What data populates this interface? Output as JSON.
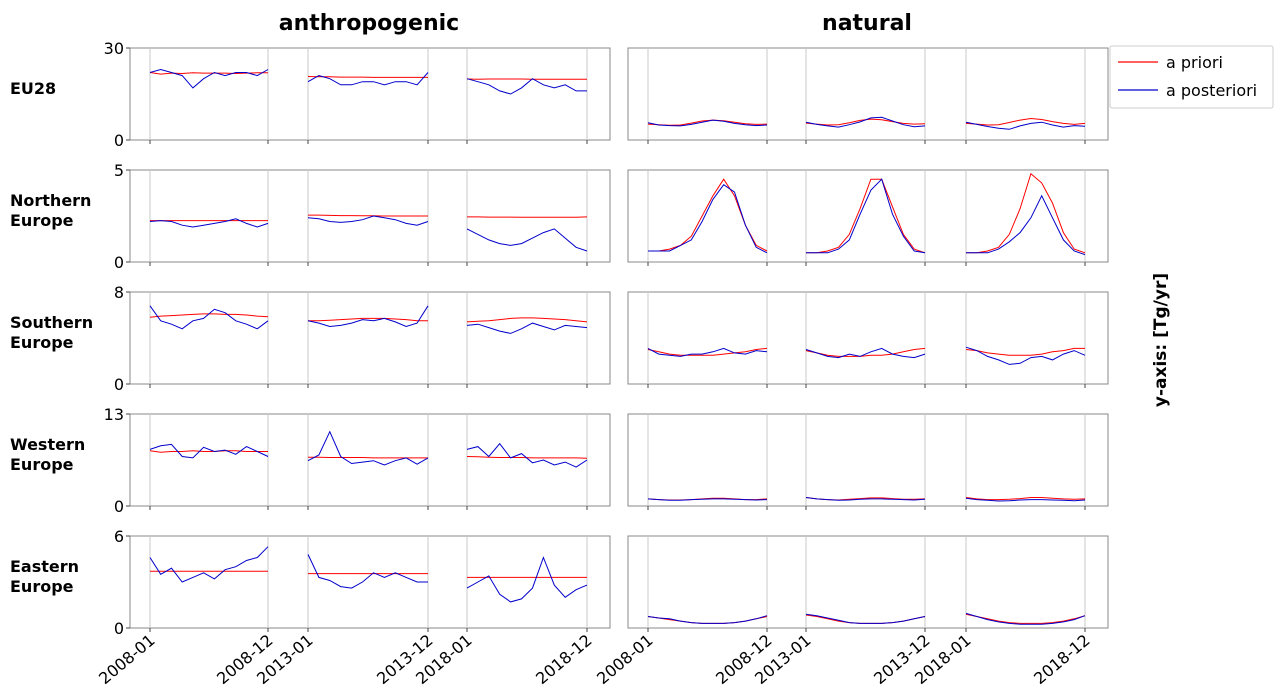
{
  "figure": {
    "col_titles": [
      "anthropogenic",
      "natural"
    ],
    "row_labels": [
      [
        "EU28"
      ],
      [
        "Northern",
        "Europe"
      ],
      [
        "Southern",
        "Europe"
      ],
      [
        "Western",
        "Europe"
      ],
      [
        "Eastern",
        "Europe"
      ]
    ],
    "y_axis_label": "y-axis: [Tg/yr]",
    "legend": {
      "prior_label": "a priori",
      "posterior_label": "a posteriori",
      "placement": "top-right, outside axes"
    },
    "colors": {
      "prior": "#ff0000",
      "posterior": "#0000cc",
      "vline": "#c8c8c8",
      "frame": "#888888"
    }
  },
  "chart_data": {
    "type": "line",
    "grid": false,
    "x_segments": [
      {
        "start": "2008-01",
        "end": "2008-12",
        "months": 12
      },
      {
        "start": "2013-01",
        "end": "2013-12",
        "months": 12
      },
      {
        "start": "2018-01",
        "end": "2018-12",
        "months": 12
      }
    ],
    "x_tick_labels": [
      "2008-01",
      "2008-12",
      "2013-01",
      "2013-12",
      "2018-01",
      "2018-12"
    ],
    "rows": [
      {
        "region": "EU28",
        "ylim": [
          0,
          30
        ],
        "y_ticks": [
          "0",
          "30"
        ],
        "anthropogenic": {
          "prior": [
            [
              22,
              21.5,
              21.8,
              21.7,
              21.9,
              21.8,
              21.8,
              21.8,
              21.7,
              21.8,
              21.9,
              21.9
            ],
            [
              20.7,
              20.6,
              20.6,
              20.5,
              20.5,
              20.5,
              20.4,
              20.4,
              20.4,
              20.4,
              20.4,
              20.4
            ],
            [
              19.9,
              19.8,
              19.9,
              19.9,
              19.9,
              19.9,
              19.8,
              19.8,
              19.8,
              19.8,
              19.8,
              19.8
            ]
          ],
          "posterior": [
            [
              22,
              23,
              22,
              21,
              17,
              20,
              22,
              21,
              22,
              22,
              21,
              23
            ],
            [
              19,
              21,
              20,
              18,
              18,
              19,
              19,
              18,
              19,
              19,
              18,
              22
            ],
            [
              20,
              19,
              18,
              16,
              15,
              17,
              20,
              18,
              17,
              18,
              16,
              16
            ]
          ]
        },
        "natural": {
          "prior": [
            [
              5.2,
              5.0,
              4.8,
              4.9,
              5.5,
              6.2,
              6.5,
              6.3,
              5.8,
              5.3,
              5.1,
              5.2
            ],
            [
              5.5,
              5.2,
              4.9,
              5.0,
              5.6,
              6.4,
              6.8,
              6.6,
              6.0,
              5.4,
              5.2,
              5.3
            ],
            [
              5.4,
              5.2,
              4.9,
              5.0,
              5.7,
              6.5,
              7.0,
              6.7,
              6.0,
              5.4,
              5.1,
              5.4
            ]
          ],
          "posterior": [
            [
              5.6,
              4.9,
              4.7,
              4.6,
              5.1,
              5.8,
              6.5,
              6.1,
              5.4,
              5.0,
              4.7,
              4.9
            ],
            [
              5.8,
              5.1,
              4.6,
              4.2,
              5.0,
              5.9,
              7.2,
              7.4,
              6.2,
              5.0,
              4.3,
              4.6
            ],
            [
              5.8,
              5.1,
              4.4,
              3.8,
              3.5,
              4.6,
              5.4,
              5.8,
              4.9,
              4.2,
              4.7,
              4.5
            ]
          ]
        }
      },
      {
        "region": "Northern Europe",
        "ylim": [
          0,
          5
        ],
        "y_ticks": [
          "0",
          "5"
        ],
        "anthropogenic": {
          "prior": [
            [
              2.25,
              2.25,
              2.25,
              2.25,
              2.25,
              2.25,
              2.25,
              2.25,
              2.25,
              2.25,
              2.25,
              2.25
            ],
            [
              2.55,
              2.55,
              2.53,
              2.52,
              2.52,
              2.51,
              2.51,
              2.5,
              2.5,
              2.5,
              2.5,
              2.5
            ],
            [
              2.45,
              2.45,
              2.44,
              2.44,
              2.44,
              2.43,
              2.43,
              2.43,
              2.43,
              2.43,
              2.43,
              2.45
            ]
          ],
          "posterior": [
            [
              2.2,
              2.25,
              2.2,
              2.0,
              1.9,
              2.0,
              2.1,
              2.2,
              2.35,
              2.1,
              1.9,
              2.1
            ],
            [
              2.4,
              2.35,
              2.2,
              2.15,
              2.2,
              2.3,
              2.5,
              2.4,
              2.3,
              2.1,
              2.0,
              2.2
            ],
            [
              1.8,
              1.5,
              1.2,
              1.0,
              0.9,
              1.0,
              1.3,
              1.6,
              1.8,
              1.3,
              0.8,
              0.6
            ]
          ]
        },
        "natural": {
          "prior": [
            [
              0.6,
              0.6,
              0.7,
              0.9,
              1.4,
              2.5,
              3.6,
              4.5,
              3.6,
              2.0,
              0.9,
              0.6
            ],
            [
              0.5,
              0.5,
              0.6,
              0.8,
              1.5,
              2.9,
              4.5,
              4.5,
              3.0,
              1.5,
              0.7,
              0.5
            ],
            [
              0.5,
              0.5,
              0.6,
              0.8,
              1.5,
              2.9,
              4.8,
              4.3,
              3.2,
              1.6,
              0.7,
              0.5
            ]
          ],
          "posterior": [
            [
              0.6,
              0.6,
              0.6,
              0.9,
              1.2,
              2.2,
              3.4,
              4.2,
              3.8,
              2.0,
              0.8,
              0.5
            ],
            [
              0.5,
              0.5,
              0.5,
              0.7,
              1.2,
              2.6,
              3.9,
              4.5,
              2.6,
              1.4,
              0.6,
              0.5
            ],
            [
              0.5,
              0.5,
              0.5,
              0.7,
              1.1,
              1.6,
              2.4,
              3.6,
              2.4,
              1.2,
              0.6,
              0.4
            ]
          ]
        }
      },
      {
        "region": "Southern Europe",
        "ylim": [
          0,
          8
        ],
        "y_ticks": [
          "0",
          "8"
        ],
        "anthropogenic": {
          "prior": [
            [
              5.8,
              5.9,
              5.95,
              6.0,
              6.05,
              6.1,
              6.1,
              6.05,
              6.05,
              6.0,
              5.9,
              5.85
            ],
            [
              5.5,
              5.5,
              5.55,
              5.6,
              5.65,
              5.7,
              5.7,
              5.7,
              5.65,
              5.6,
              5.5,
              5.5
            ],
            [
              5.4,
              5.45,
              5.5,
              5.6,
              5.7,
              5.75,
              5.75,
              5.7,
              5.65,
              5.6,
              5.5,
              5.4
            ]
          ],
          "posterior": [
            [
              6.8,
              5.5,
              5.2,
              4.8,
              5.5,
              5.7,
              6.5,
              6.2,
              5.5,
              5.2,
              4.8,
              5.5
            ],
            [
              5.5,
              5.3,
              5.0,
              5.1,
              5.3,
              5.6,
              5.5,
              5.7,
              5.4,
              5.0,
              5.3,
              6.8
            ],
            [
              5.1,
              5.2,
              4.9,
              4.6,
              4.4,
              4.8,
              5.3,
              5.0,
              4.7,
              5.1,
              5.0,
              4.9
            ]
          ]
        },
        "natural": {
          "prior": [
            [
              3.0,
              2.8,
              2.6,
              2.5,
              2.5,
              2.5,
              2.5,
              2.6,
              2.7,
              2.8,
              3.0,
              3.1
            ],
            [
              2.9,
              2.7,
              2.5,
              2.4,
              2.4,
              2.4,
              2.5,
              2.5,
              2.6,
              2.8,
              3.0,
              3.1
            ],
            [
              3.0,
              2.9,
              2.7,
              2.6,
              2.5,
              2.5,
              2.5,
              2.6,
              2.8,
              2.9,
              3.1,
              3.1
            ]
          ],
          "posterior": [
            [
              3.1,
              2.6,
              2.5,
              2.4,
              2.6,
              2.6,
              2.8,
              3.1,
              2.7,
              2.6,
              2.9,
              2.8
            ],
            [
              3.0,
              2.7,
              2.4,
              2.3,
              2.6,
              2.4,
              2.8,
              3.1,
              2.6,
              2.4,
              2.3,
              2.6
            ],
            [
              3.2,
              2.9,
              2.4,
              2.1,
              1.7,
              1.8,
              2.3,
              2.4,
              2.1,
              2.6,
              2.9,
              2.5
            ]
          ]
        }
      },
      {
        "region": "Western Europe",
        "ylim": [
          0,
          13
        ],
        "y_ticks": [
          "0",
          "13"
        ],
        "anthropogenic": {
          "prior": [
            [
              7.8,
              7.6,
              7.7,
              7.7,
              7.8,
              7.7,
              7.7,
              7.8,
              7.8,
              7.7,
              7.7,
              7.7
            ],
            [
              6.9,
              6.9,
              6.85,
              6.85,
              6.85,
              6.85,
              6.8,
              6.8,
              6.8,
              6.8,
              6.8,
              6.8
            ],
            [
              7.0,
              6.95,
              6.9,
              6.85,
              6.85,
              6.85,
              6.8,
              6.8,
              6.8,
              6.8,
              6.8,
              6.75
            ]
          ],
          "posterior": [
            [
              8.0,
              8.5,
              8.7,
              7.0,
              6.8,
              8.3,
              7.7,
              7.9,
              7.3,
              8.4,
              7.7,
              7.0
            ],
            [
              6.4,
              7.2,
              10.5,
              7.0,
              6.0,
              6.2,
              6.4,
              5.8,
              6.4,
              6.8,
              5.9,
              6.8
            ],
            [
              8.0,
              8.4,
              7.0,
              8.8,
              6.8,
              7.4,
              6.1,
              6.5,
              5.8,
              6.2,
              5.5,
              6.5
            ]
          ]
        },
        "natural": {
          "prior": [
            [
              1.0,
              0.9,
              0.85,
              0.85,
              0.9,
              1.0,
              1.1,
              1.1,
              1.0,
              0.9,
              0.9,
              1.0
            ],
            [
              1.2,
              1.0,
              0.9,
              0.85,
              0.95,
              1.05,
              1.15,
              1.15,
              1.05,
              0.95,
              0.95,
              1.0
            ],
            [
              1.2,
              1.0,
              0.9,
              0.9,
              0.95,
              1.05,
              1.2,
              1.2,
              1.1,
              1.0,
              0.95,
              1.0
            ]
          ],
          "posterior": [
            [
              1.0,
              0.9,
              0.8,
              0.8,
              0.9,
              0.95,
              1.0,
              1.0,
              0.95,
              0.9,
              0.85,
              0.9
            ],
            [
              1.2,
              1.0,
              0.9,
              0.8,
              0.85,
              0.95,
              1.0,
              1.0,
              0.95,
              0.9,
              0.85,
              0.95
            ],
            [
              1.1,
              0.9,
              0.8,
              0.7,
              0.75,
              0.85,
              0.9,
              0.9,
              0.85,
              0.8,
              0.75,
              0.85
            ]
          ]
        }
      },
      {
        "region": "Eastern Europe",
        "ylim": [
          0,
          6
        ],
        "y_ticks": [
          "0",
          "6"
        ],
        "anthropogenic": {
          "prior": [
            [
              3.7,
              3.7,
              3.7,
              3.7,
              3.7,
              3.7,
              3.7,
              3.7,
              3.7,
              3.7,
              3.7,
              3.7
            ],
            [
              3.55,
              3.55,
              3.55,
              3.55,
              3.55,
              3.55,
              3.55,
              3.55,
              3.55,
              3.55,
              3.55,
              3.55
            ],
            [
              3.3,
              3.3,
              3.3,
              3.3,
              3.3,
              3.3,
              3.3,
              3.3,
              3.3,
              3.3,
              3.3,
              3.3
            ]
          ],
          "posterior": [
            [
              4.6,
              3.5,
              3.9,
              3.0,
              3.3,
              3.6,
              3.2,
              3.8,
              4.0,
              4.4,
              4.6,
              5.3
            ],
            [
              4.8,
              3.3,
              3.1,
              2.7,
              2.6,
              3.0,
              3.6,
              3.3,
              3.6,
              3.3,
              3.0,
              3.0
            ],
            [
              2.6,
              3.0,
              3.4,
              2.2,
              1.7,
              1.9,
              2.6,
              4.6,
              2.8,
              2.0,
              2.5,
              2.8
            ]
          ]
        },
        "natural": {
          "prior": [
            [
              0.75,
              0.65,
              0.55,
              0.45,
              0.35,
              0.3,
              0.3,
              0.3,
              0.35,
              0.45,
              0.6,
              0.75
            ],
            [
              0.85,
              0.75,
              0.6,
              0.45,
              0.35,
              0.3,
              0.3,
              0.3,
              0.35,
              0.45,
              0.6,
              0.75
            ],
            [
              0.9,
              0.75,
              0.6,
              0.45,
              0.35,
              0.3,
              0.3,
              0.3,
              0.35,
              0.45,
              0.6,
              0.8
            ]
          ],
          "posterior": [
            [
              0.75,
              0.65,
              0.6,
              0.45,
              0.35,
              0.3,
              0.3,
              0.3,
              0.35,
              0.45,
              0.6,
              0.8
            ],
            [
              0.9,
              0.8,
              0.65,
              0.5,
              0.35,
              0.3,
              0.3,
              0.3,
              0.35,
              0.45,
              0.6,
              0.75
            ],
            [
              0.95,
              0.75,
              0.55,
              0.4,
              0.3,
              0.25,
              0.25,
              0.25,
              0.3,
              0.4,
              0.55,
              0.8
            ]
          ]
        }
      }
    ]
  }
}
